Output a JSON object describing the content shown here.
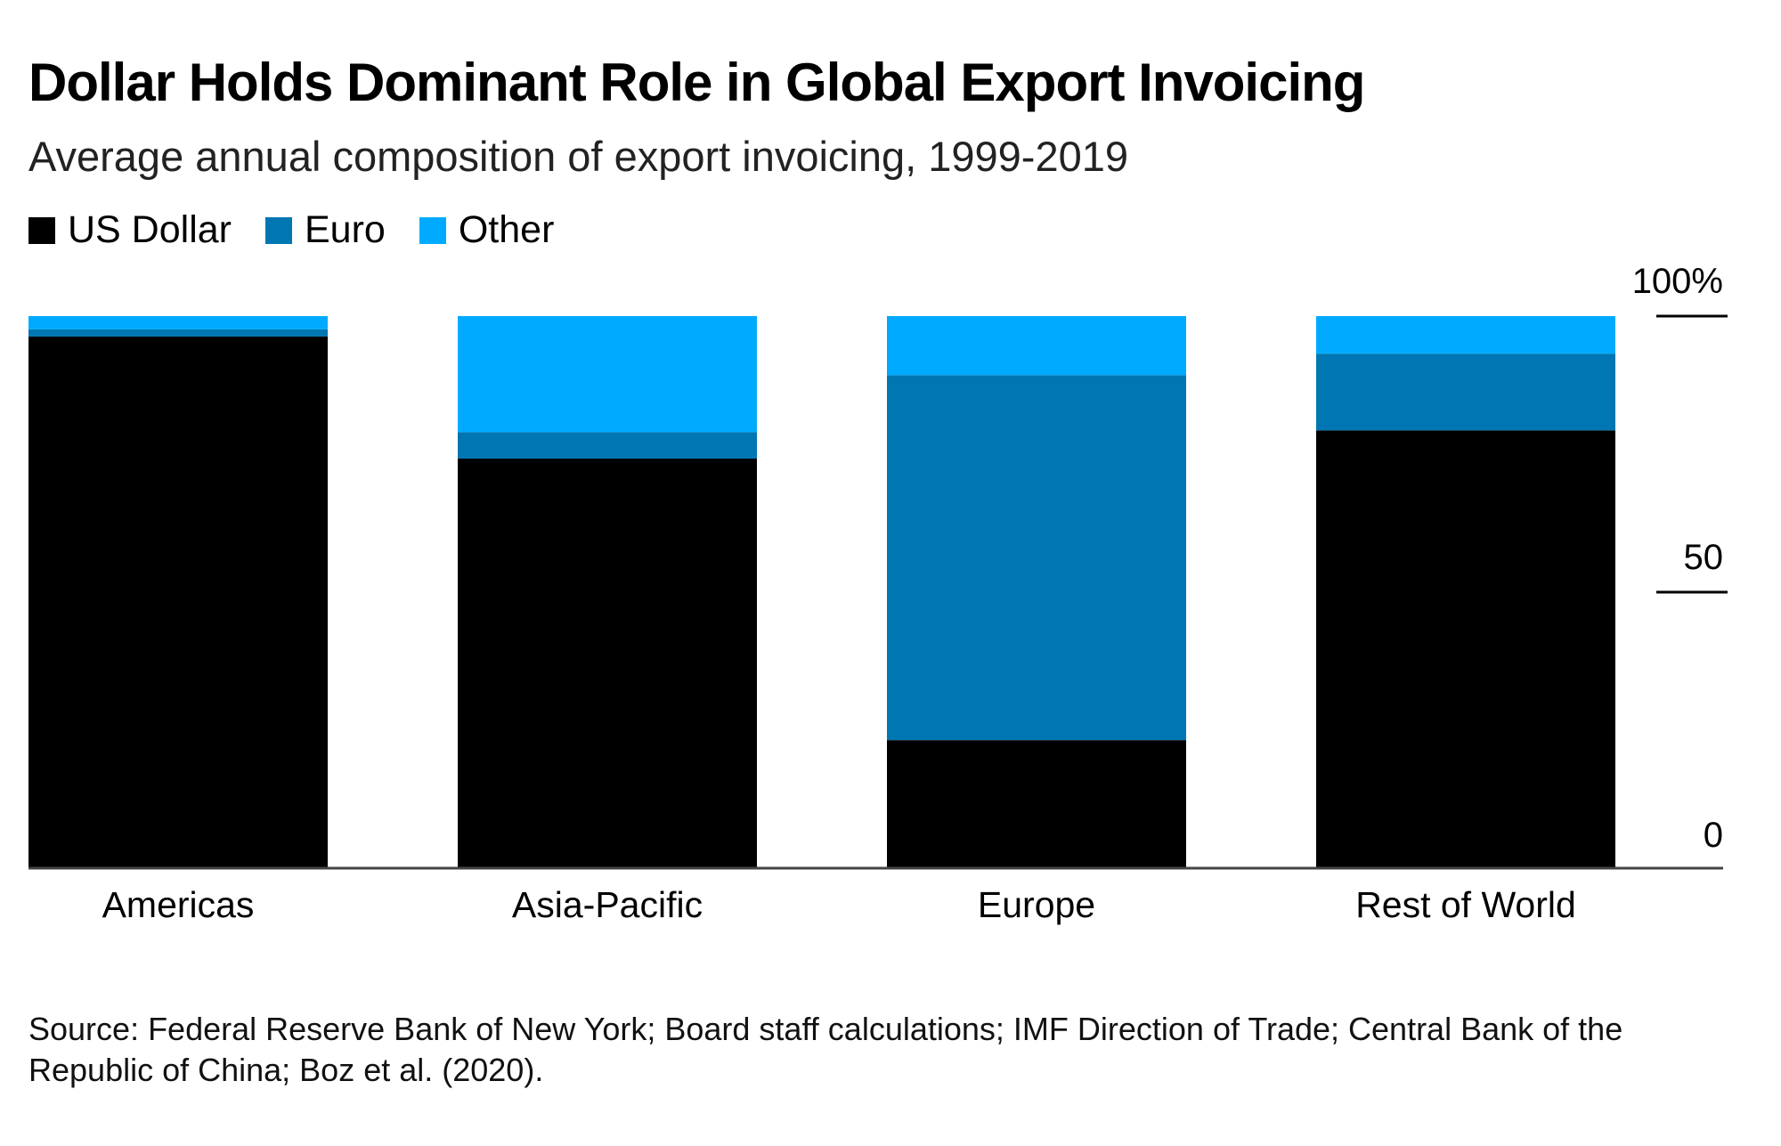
{
  "chart_data": {
    "type": "bar",
    "stacked": true,
    "title": "Dollar Holds Dominant Role in Global Export Invoicing",
    "subtitle": "Average annual composition of export invoicing, 1999-2019",
    "categories": [
      "Americas",
      "Asia-Pacific",
      "Europe",
      "Rest of World"
    ],
    "series": [
      {
        "name": "US Dollar",
        "color": "#000000",
        "values": [
          96.3,
          74.2,
          23.2,
          79.3
        ]
      },
      {
        "name": "Euro",
        "color": "#0076b3",
        "values": [
          1.3,
          4.8,
          66.1,
          13.9
        ]
      },
      {
        "name": "Other",
        "color": "#00abff",
        "values": [
          2.4,
          21.0,
          10.7,
          6.8
        ]
      }
    ],
    "yaxis": {
      "min": 0,
      "max": 100,
      "ticks": [
        0,
        50,
        100
      ],
      "tick_labels": [
        "0",
        "50",
        "100%"
      ],
      "position": "right"
    },
    "legend_position": "top-left",
    "grid": false,
    "source": "Source: Federal Reserve Bank of New York; Board staff calculations; IMF Direction of Trade; Central Bank of the Republic of China; Boz et al. (2020)."
  }
}
